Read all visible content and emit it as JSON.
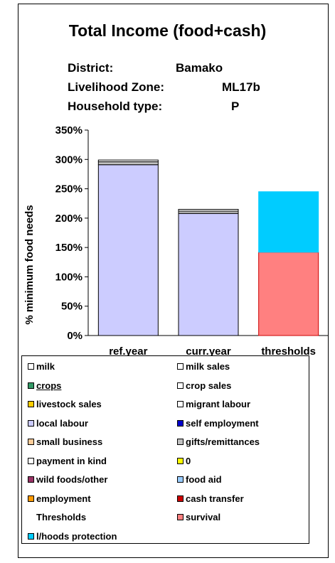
{
  "header": {
    "title": "Total Income (food+cash)",
    "district_label": "District:",
    "district_value": "Bamako",
    "zone_label": "Livelihood Zone:",
    "zone_value": "ML17b",
    "household_label": "Household type:",
    "household_value": "P"
  },
  "chart_data": {
    "type": "bar",
    "stacked": true,
    "title": "Total Income (food+cash)",
    "ylabel": "% minimum food needs",
    "ylim": [
      0,
      350
    ],
    "yticks": [
      "0%",
      "50%",
      "100%",
      "150%",
      "200%",
      "250%",
      "300%",
      "350%"
    ],
    "categories": [
      "ref.year",
      "curr.year",
      "thresholds"
    ],
    "series": [
      {
        "name": "local labour",
        "color": "#ccccff",
        "values": [
          291,
          208,
          0
        ]
      },
      {
        "name": "gifts/remittances",
        "color": "#c0c0c0",
        "values": [
          5,
          4,
          0
        ]
      },
      {
        "name": "payment in kind",
        "color": "#ffffff",
        "values": [
          3,
          3,
          0
        ]
      },
      {
        "name": "survival",
        "color": "#ff8080",
        "values": [
          0,
          0,
          142
        ]
      },
      {
        "name": "l/hoods protection",
        "color": "#00ccff",
        "values": [
          0,
          0,
          103
        ]
      }
    ],
    "legend_position": "bottom"
  },
  "legend": [
    {
      "label": "milk",
      "color": "#ffffff"
    },
    {
      "label": "milk sales",
      "color": "#ffffff"
    },
    {
      "label": "crops",
      "color": "#339966",
      "underline": true
    },
    {
      "label": "crop sales",
      "color": "#ffffff"
    },
    {
      "label": "livestock sales",
      "color": "#ffcc00"
    },
    {
      "label": "migrant labour",
      "color": "#ffffff"
    },
    {
      "label": "local labour",
      "color": "#ccccff"
    },
    {
      "label": "self employment",
      "color": "#0000cc"
    },
    {
      "label": "small business",
      "color": "#ffcc99"
    },
    {
      "label": "gifts/remittances",
      "color": "#c0c0c0"
    },
    {
      "label": "payment in kind",
      "color": "#ffffff"
    },
    {
      "label": "0",
      "color": "#ffff00"
    },
    {
      "label": "wild foods/other",
      "color": "#993366"
    },
    {
      "label": "food aid",
      "color": "#99ccff"
    },
    {
      "label": "employment",
      "color": "#ff9900"
    },
    {
      "label": "cash transfer",
      "color": "#cc0000"
    },
    {
      "label": "Thresholds",
      "color": ""
    },
    {
      "label": "survival",
      "color": "#ff8080"
    },
    {
      "label": "l/hoods protection",
      "color": "#00ccff"
    }
  ]
}
